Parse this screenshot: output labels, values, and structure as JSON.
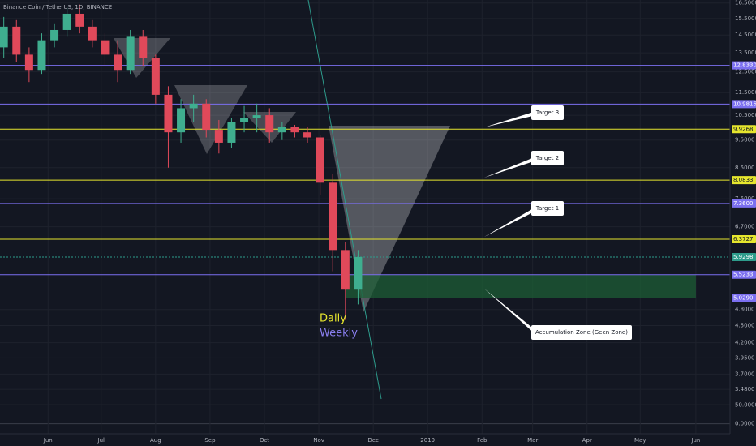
{
  "chart_data": {
    "type": "candlestick",
    "title": "Binance Coin / TetherUS, 1D, BINANCE",
    "log_scale": true,
    "grid": true,
    "up_color": "#3fae8f",
    "down_color": "#e0495a",
    "ylim": [
      3.37,
      16.7
    ],
    "yticks": [
      {
        "value": 16.5,
        "label": "16.5000"
      },
      {
        "value": 15.5,
        "label": "15.5000"
      },
      {
        "value": 14.5,
        "label": "14.5000"
      },
      {
        "value": 13.5,
        "label": "13.5000"
      },
      {
        "value": 12.5,
        "label": "12.5000"
      },
      {
        "value": 11.5,
        "label": "11.5000"
      },
      {
        "value": 10.5,
        "label": "10.5000"
      },
      {
        "value": 9.5,
        "label": "9.5000"
      },
      {
        "value": 8.5,
        "label": "8.5000"
      },
      {
        "value": 7.5,
        "label": "7.5000"
      },
      {
        "value": 6.7,
        "label": "6.7000"
      },
      {
        "value": 4.8,
        "label": "4.8000"
      },
      {
        "value": 4.5,
        "label": "4.5000"
      },
      {
        "value": 4.2,
        "label": "4.2000"
      },
      {
        "value": 3.95,
        "label": "3.9500"
      },
      {
        "value": 3.7,
        "label": "3.7000"
      },
      {
        "value": 3.48,
        "label": "3.4800"
      }
    ],
    "y2lim": [
      -5,
      70
    ],
    "y2ticks": [
      {
        "value": 50,
        "label": "50.0000"
      },
      {
        "value": 0,
        "label": "0.0000"
      }
    ],
    "xlim": [
      -0.3,
      57.4
    ],
    "xticks": [
      {
        "value": 3.5,
        "label": "Jun"
      },
      {
        "value": 7.7,
        "label": "Jul"
      },
      {
        "value": 12,
        "label": "Aug"
      },
      {
        "value": 16.3,
        "label": "Sep"
      },
      {
        "value": 20.6,
        "label": "Oct"
      },
      {
        "value": 24.9,
        "label": "Nov"
      },
      {
        "value": 29.2,
        "label": "Dec"
      },
      {
        "value": 33.5,
        "label": "2019"
      },
      {
        "value": 37.8,
        "label": "Feb"
      },
      {
        "value": 41.8,
        "label": "Mar"
      },
      {
        "value": 46.1,
        "label": "Apr"
      },
      {
        "value": 50.3,
        "label": "May"
      },
      {
        "value": 54.7,
        "label": "Jun"
      }
    ],
    "open": [
      13.8,
      15.0,
      13.4,
      12.6,
      14.2,
      14.8,
      15.8,
      15.0,
      14.2,
      13.4,
      12.6,
      14.4,
      13.2,
      11.4,
      9.8,
      10.8,
      11.0,
      9.9,
      9.4,
      10.2,
      10.4,
      10.5,
      9.8,
      10.0,
      9.8,
      9.6,
      8.0,
      6.1,
      5.2
    ],
    "high": [
      15.6,
      15.4,
      13.8,
      14.6,
      15.2,
      16.2,
      16.4,
      15.4,
      14.6,
      14.2,
      14.8,
      14.8,
      13.4,
      11.8,
      11.2,
      11.4,
      11.2,
      10.3,
      10.4,
      10.9,
      11.0,
      10.8,
      10.2,
      10.1,
      10.0,
      9.7,
      8.3,
      6.3,
      6.1
    ],
    "low": [
      13.2,
      13.0,
      12.0,
      12.4,
      13.8,
      14.4,
      14.6,
      13.8,
      12.8,
      12.0,
      12.4,
      12.8,
      11.0,
      8.5,
      9.4,
      10.2,
      9.6,
      9.0,
      9.2,
      9.8,
      9.8,
      9.4,
      9.5,
      9.6,
      9.4,
      7.6,
      5.6,
      4.6,
      4.9
    ],
    "close": [
      15.0,
      13.4,
      12.6,
      14.2,
      14.8,
      15.8,
      15.0,
      14.2,
      13.4,
      12.6,
      14.4,
      13.2,
      11.4,
      9.8,
      10.8,
      11.0,
      9.9,
      9.4,
      10.2,
      10.4,
      10.5,
      9.8,
      10.0,
      9.8,
      9.6,
      8.0,
      6.1,
      5.2,
      5.93
    ],
    "levels": [
      {
        "value": 12.833,
        "label": "12.8330",
        "color": "#7b6ff0"
      },
      {
        "value": 10.9815,
        "label": "10.9815",
        "color": "#7b6ff0"
      },
      {
        "value": 9.9268,
        "label": "9.9268",
        "color": "#e6e62e"
      },
      {
        "value": 8.0833,
        "label": "8.0833",
        "color": "#e6e62e"
      },
      {
        "value": 7.36,
        "label": "7.3600",
        "color": "#7b6ff0"
      },
      {
        "value": 6.3727,
        "label": "6.3727",
        "color": "#e6e62e"
      },
      {
        "value": 5.9298,
        "label": "5.9298",
        "color": "#2e9c8c"
      },
      {
        "value": 5.5233,
        "label": "5.5233",
        "color": "#7b6ff0"
      },
      {
        "value": 5.029,
        "label": "5.0290",
        "color": "#7b6ff0"
      }
    ],
    "zone": {
      "low": 5.029,
      "high": 5.5233,
      "x": [
        27,
        54.7
      ],
      "color": "#1d5e35"
    },
    "annotations": [
      "Target 3",
      "Target 2",
      "Target 1",
      "Accumulation Zone (Geen Zone)"
    ],
    "legend": [
      {
        "name": "Daily",
        "color": "#e6e62e"
      },
      {
        "name": "Weekly",
        "color": "#8a7ff0"
      }
    ]
  }
}
